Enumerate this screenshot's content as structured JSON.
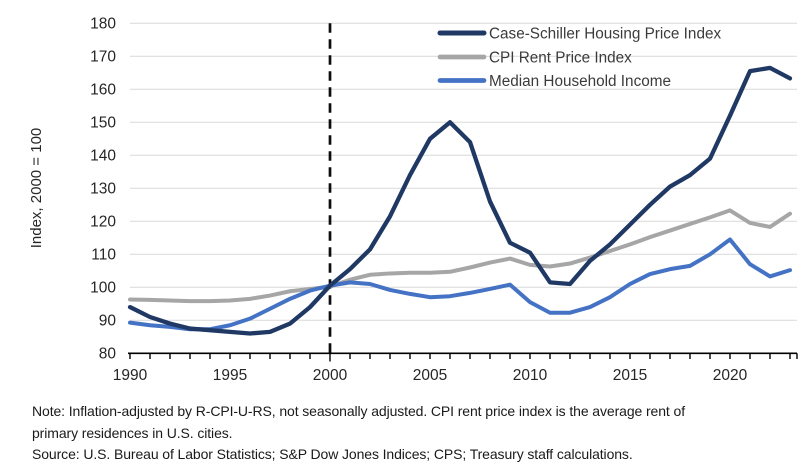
{
  "chart_data": {
    "type": "line",
    "title": "",
    "ylabel": "Index, 2000 = 100",
    "xlabel": "",
    "ylim": [
      80,
      180
    ],
    "ytick_step": 10,
    "x_range": [
      1990,
      2023
    ],
    "xticks_labeled": [
      1990,
      1995,
      2000,
      2005,
      2010,
      2015,
      2020
    ],
    "reference_line_x": 2000,
    "grid": "horizontal",
    "legend_position": "top-right",
    "x": [
      1990,
      1991,
      1992,
      1993,
      1994,
      1995,
      1996,
      1997,
      1998,
      1999,
      2000,
      2001,
      2002,
      2003,
      2004,
      2005,
      2006,
      2007,
      2008,
      2009,
      2010,
      2011,
      2012,
      2013,
      2014,
      2015,
      2016,
      2017,
      2018,
      2019,
      2020,
      2021,
      2022,
      2023
    ],
    "series": [
      {
        "name": "Case-Schiller Housing Price Index",
        "color": "#1F3864",
        "stroke_width": 4.3,
        "values": [
          94,
          91,
          89,
          87.5,
          87,
          86.5,
          86,
          86.5,
          89,
          94,
          100.5,
          105.5,
          111.5,
          121.5,
          134,
          145,
          150,
          144,
          126,
          113.5,
          110.5,
          101.5,
          101,
          108,
          113,
          119,
          125,
          130.5,
          134,
          139,
          152,
          165.5,
          166.5,
          163.3
        ]
      },
      {
        "name": "CPI Rent Price Index",
        "color": "#A6A6A6",
        "stroke_width": 4,
        "values": [
          96.3,
          96.2,
          96,
          95.8,
          95.8,
          96,
          96.5,
          97.5,
          98.8,
          99.5,
          100.2,
          102.3,
          103.8,
          104.2,
          104.4,
          104.4,
          104.7,
          106,
          107.5,
          108.7,
          106.8,
          106.3,
          107.2,
          109,
          111,
          113,
          115.2,
          117.2,
          119.2,
          121.2,
          123.3,
          119.5,
          118.3,
          122.3
        ]
      },
      {
        "name": "Median Household Income",
        "color": "#4472C4",
        "stroke_width": 4,
        "values": [
          89.3,
          88.5,
          88,
          87.3,
          87.3,
          88.5,
          90.5,
          93.5,
          96.5,
          99,
          100.5,
          101.5,
          101,
          99.2,
          98,
          97,
          97.3,
          98.3,
          99.5,
          100.8,
          95.5,
          92.3,
          92.3,
          94,
          97,
          101,
          104,
          105.5,
          106.5,
          110,
          114.5,
          107,
          103.3,
          105.2
        ]
      }
    ],
    "colors": {
      "gridline": "#D9D9D9",
      "axis": "#000000",
      "tick_label": "#262626",
      "legend_text": "#3b3b3b",
      "reference_line": "#0d0d0d"
    }
  },
  "notes": {
    "note": "Note: Inflation-adjusted by R-CPI-U-RS, not seasonally adjusted. CPI rent price index is the average rent of primary residences in U.S. cities.",
    "source": "Source: U.S. Bureau of Labor Statistics; S&P Dow Jones Indices; CPS; Treasury staff calculations."
  }
}
